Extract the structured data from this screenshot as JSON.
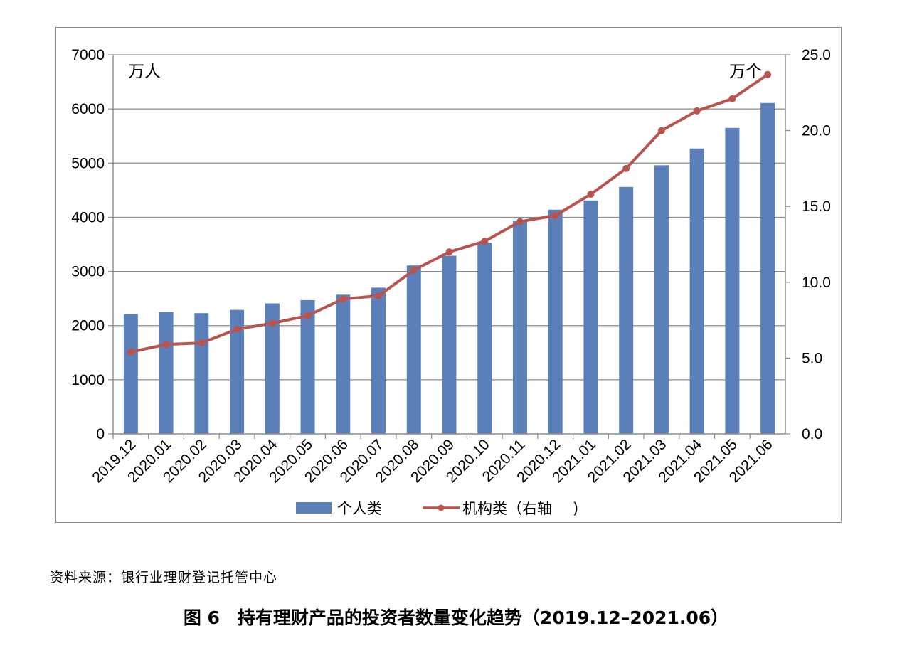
{
  "source_note": "资料来源：银行业理财登记托管中心",
  "figure_caption": "图 6　持有理财产品的投资者数量变化趋势（2019.12–2021.06）",
  "chart_data": {
    "type": "bar",
    "categories": [
      "2019.12",
      "2020.01",
      "2020.02",
      "2020.03",
      "2020.04",
      "2020.05",
      "2020.06",
      "2020.07",
      "2020.08",
      "2020.09",
      "2020.10",
      "2020.11",
      "2020.12",
      "2021.01",
      "2021.02",
      "2021.03",
      "2021.04",
      "2021.05",
      "2021.06"
    ],
    "series": [
      {
        "name": "个人类",
        "type": "bar",
        "axis": "left",
        "color": "#5b80b9",
        "values": [
          2210,
          2250,
          2230,
          2290,
          2410,
          2470,
          2570,
          2700,
          3110,
          3290,
          3530,
          3940,
          4140,
          4310,
          4560,
          4960,
          5270,
          5650,
          6110
        ]
      },
      {
        "name": "机构类（右轴",
        "type": "line",
        "axis": "right",
        "color": "#b85450",
        "values": [
          5.4,
          5.9,
          6.0,
          6.9,
          7.3,
          7.8,
          8.9,
          9.1,
          10.8,
          12.0,
          12.7,
          14.0,
          14.4,
          15.8,
          17.5,
          20.0,
          21.3,
          22.1,
          23.7
        ]
      }
    ],
    "y_left": {
      "unit": "万人",
      "ylim": [
        0,
        7000
      ],
      "ticks": [
        "0",
        "1000",
        "2000",
        "3000",
        "4000",
        "5000",
        "6000",
        "7000"
      ]
    },
    "y_right": {
      "unit": "万个",
      "ylim": [
        0,
        25
      ],
      "ticks": [
        "0.0",
        "5.0",
        "10.0",
        "15.0",
        "20.0",
        "25.0"
      ]
    },
    "grid": true,
    "legend_position": "bottom"
  }
}
